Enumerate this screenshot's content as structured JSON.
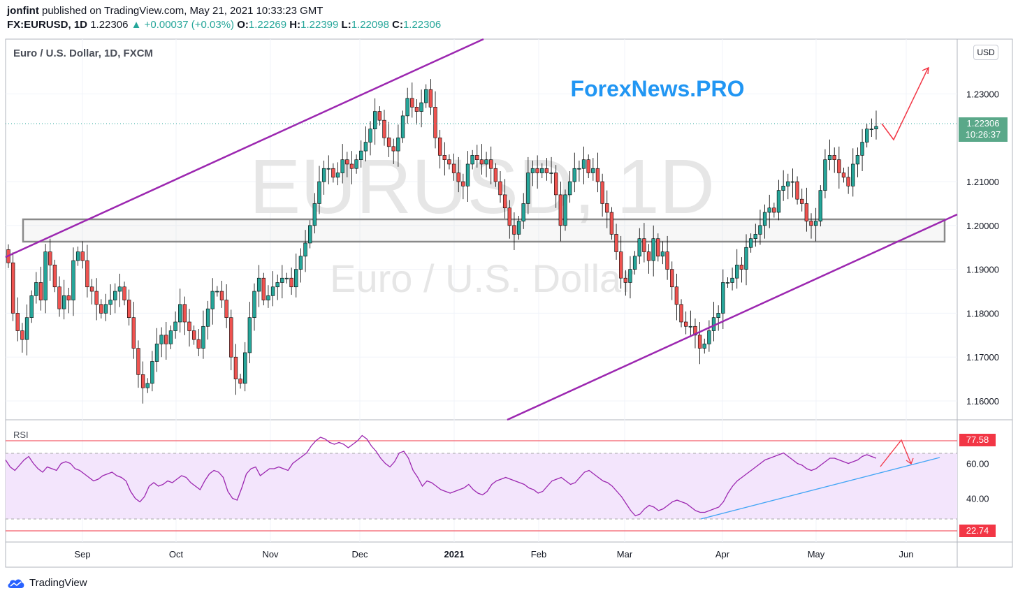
{
  "header": {
    "publisher": "jonfint",
    "published_text": "published on TradingView.com, May 21, 2021 10:33:23 GMT",
    "symbol": "FX:EURUSD, 1D",
    "last": "1.22306",
    "change": "▲ +0.00037 (+0.03%)",
    "o_label": "O:",
    "o": "1.22269",
    "h_label": "H:",
    "h": "1.22399",
    "l_label": "L:",
    "l": "1.22098",
    "c_label": "C:",
    "c": "1.22306"
  },
  "pane_title": "Euro / U.S. Dollar, 1D, FXCM",
  "watermark_symbol": "EURUSD, 1D",
  "watermark_name": "Euro / U.S. Dollar",
  "brand_overlay": "ForexNews.PRO",
  "currency_badge": "USD",
  "price_tag": {
    "price": "1.22306",
    "countdown": "10:26:37"
  },
  "rsi_label": "RSI",
  "rsi_tags": {
    "high": "77.58",
    "low": "22.74"
  },
  "footer_logo": "TradingView",
  "colors": {
    "up": "#26a69a",
    "down": "#ef5350",
    "channel": "#9c27b0",
    "arrow": "#f23645",
    "brand": "#2196f3",
    "rsi_line": "#9c27b0",
    "rsi_band": "#f3e5fc",
    "trend": "#42a5f5"
  },
  "chart_data": [
    {
      "type": "candlestick",
      "title": "Euro / U.S. Dollar, 1D, FXCM",
      "y_ticks": [
        "1.16000",
        "1.17000",
        "1.18000",
        "1.19000",
        "1.20000",
        "1.21000",
        "1.23000"
      ],
      "ylim": [
        1.1557,
        1.2425
      ],
      "x_ticks": [
        "Sep",
        "Oct",
        "Nov",
        "Dec",
        "2021",
        "Feb",
        "Mar",
        "Apr",
        "May",
        "Jun"
      ],
      "last_price": 1.22306,
      "support_zone": [
        1.1963,
        1.2015
      ],
      "candles_approx": [
        1.1915,
        1.18,
        1.176,
        1.174,
        1.179,
        1.184,
        1.187,
        1.183,
        1.194,
        1.191,
        1.186,
        1.181,
        1.184,
        1.183,
        1.192,
        1.194,
        1.192,
        1.186,
        1.185,
        1.182,
        1.18,
        1.182,
        1.183,
        1.185,
        1.186,
        1.183,
        1.179,
        1.172,
        1.166,
        1.163,
        1.164,
        1.169,
        1.173,
        1.175,
        1.173,
        1.176,
        1.178,
        1.182,
        1.178,
        1.176,
        1.174,
        1.172,
        1.177,
        1.181,
        1.185,
        1.185,
        1.183,
        1.179,
        1.17,
        1.165,
        1.164,
        1.171,
        1.179,
        1.185,
        1.188,
        1.183,
        1.184,
        1.186,
        1.187,
        1.188,
        1.188,
        1.186,
        1.19,
        1.193,
        1.196,
        1.2,
        1.205,
        1.21,
        1.213,
        1.213,
        1.211,
        1.212,
        1.215,
        1.214,
        1.213,
        1.215,
        1.217,
        1.219,
        1.222,
        1.226,
        1.224,
        1.22,
        1.218,
        1.217,
        1.22,
        1.225,
        1.229,
        1.227,
        1.226,
        1.228,
        1.231,
        1.227,
        1.22,
        1.216,
        1.215,
        1.214,
        1.212,
        1.21,
        1.209,
        1.214,
        1.216,
        1.215,
        1.214,
        1.215,
        1.213,
        1.21,
        1.207,
        1.204,
        1.2,
        1.198,
        1.201,
        1.205,
        1.212,
        1.213,
        1.212,
        1.213,
        1.212,
        1.212,
        1.207,
        1.2,
        1.207,
        1.21,
        1.213,
        1.213,
        1.215,
        1.212,
        1.213,
        1.21,
        1.205,
        1.203,
        1.198,
        1.194,
        1.188,
        1.187,
        1.19,
        1.193,
        1.197,
        1.194,
        1.192,
        1.197,
        1.193,
        1.194,
        1.19,
        1.186,
        1.182,
        1.178,
        1.177,
        1.177,
        1.175,
        1.172,
        1.173,
        1.176,
        1.179,
        1.18,
        1.187,
        1.187,
        1.188,
        1.191,
        1.19,
        1.195,
        1.197,
        1.198,
        1.2,
        1.203,
        1.204,
        1.203,
        1.208,
        1.209,
        1.21,
        1.21,
        1.206,
        1.205,
        1.201,
        1.2,
        1.201,
        1.208,
        1.215,
        1.216,
        1.215,
        1.212,
        1.211,
        1.209,
        1.214,
        1.216,
        1.219,
        1.222,
        1.222,
        1.2226
      ]
    },
    {
      "type": "line",
      "title": "RSI",
      "y_ticks": [
        "40.00",
        "60.00"
      ],
      "ylim": [
        15,
        85
      ],
      "levels": {
        "upper_band": 70,
        "lower_band": 30,
        "marked_high": 77.58,
        "marked_low": 22.74
      },
      "values": [
        62,
        58,
        56,
        59,
        62,
        64,
        60,
        57,
        55,
        58,
        57,
        56,
        60,
        61,
        60,
        57,
        56,
        54,
        52,
        50,
        51,
        53,
        54,
        55,
        53,
        52,
        50,
        44,
        40,
        38,
        41,
        47,
        49,
        47,
        48,
        50,
        49,
        51,
        53,
        52,
        49,
        47,
        45,
        50,
        54,
        56,
        55,
        52,
        44,
        40,
        39,
        46,
        54,
        57,
        58,
        53,
        55,
        57,
        57,
        58,
        57,
        56,
        60,
        62,
        64,
        66,
        70,
        73,
        75,
        74,
        72,
        71,
        72,
        71,
        69,
        71,
        73,
        76,
        74,
        70,
        67,
        63,
        60,
        58,
        61,
        66,
        67,
        63,
        56,
        52,
        47,
        50,
        49,
        47,
        45,
        44,
        43,
        44,
        45,
        46,
        48,
        45,
        43,
        42,
        44,
        48,
        50,
        51,
        52,
        51,
        50,
        49,
        48,
        46,
        45,
        43,
        44,
        47,
        50,
        51,
        52,
        50,
        48,
        49,
        52,
        55,
        56,
        54,
        52,
        50,
        49,
        47,
        44,
        41,
        37,
        33,
        30,
        31,
        34,
        36,
        35,
        33,
        34,
        36,
        38,
        39,
        38,
        37,
        35,
        33,
        32,
        32,
        33,
        34,
        35,
        38,
        43,
        47,
        50,
        52,
        54,
        56,
        58,
        60,
        62,
        63,
        64,
        65,
        66,
        64,
        62,
        60,
        59,
        57,
        56,
        57,
        59,
        61,
        63,
        63,
        62,
        61,
        60,
        61,
        62,
        64,
        65,
        64,
        63
      ]
    }
  ]
}
